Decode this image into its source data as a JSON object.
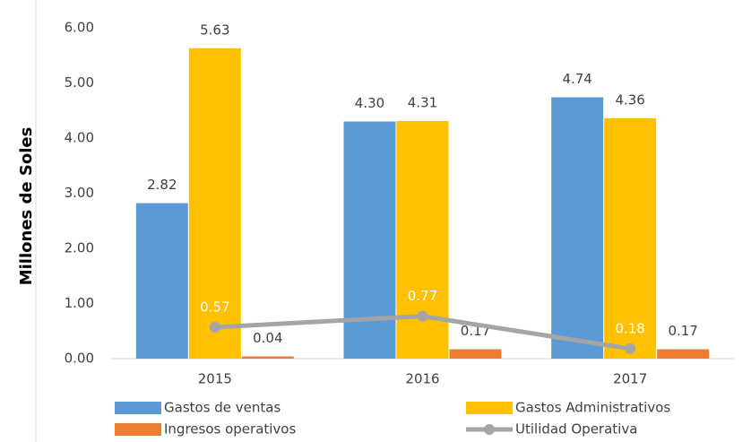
{
  "chart_data": {
    "type": "bar",
    "y_label": "Millones de Soles",
    "categories": [
      "2015",
      "2016",
      "2017"
    ],
    "series": [
      {
        "name": "Gastos de ventas",
        "type": "bar",
        "color": "#5b9bd5",
        "values": [
          2.82,
          4.3,
          4.74
        ],
        "value_labels": [
          "2.82",
          "4.30",
          "4.74"
        ]
      },
      {
        "name": "Gastos Administrativos",
        "type": "bar",
        "color": "#ffc000",
        "values": [
          5.63,
          4.31,
          4.36
        ],
        "value_labels": [
          "5.63",
          "4.31",
          "4.36"
        ]
      },
      {
        "name": "Ingresos operativos",
        "type": "bar",
        "color": "#ed7d31",
        "values": [
          0.04,
          0.17,
          0.17
        ],
        "value_labels": [
          "0.04",
          "0.17",
          "0.17"
        ]
      },
      {
        "name": "Utilidad Operativa",
        "type": "line",
        "color": "#a5a5a5",
        "values": [
          0.57,
          0.77,
          0.18
        ],
        "value_labels": [
          "0.57",
          "0.77",
          "0.18"
        ]
      }
    ],
    "ylim": [
      0,
      6
    ],
    "yticks": [
      {
        "value": 0,
        "label": "0.00"
      },
      {
        "value": 1,
        "label": "1.00"
      },
      {
        "value": 2,
        "label": "2.00"
      },
      {
        "value": 3,
        "label": "3.00"
      },
      {
        "value": 4,
        "label": "4.00"
      },
      {
        "value": 5,
        "label": "5.00"
      },
      {
        "value": 6,
        "label": "6.00"
      }
    ],
    "grid": false
  }
}
